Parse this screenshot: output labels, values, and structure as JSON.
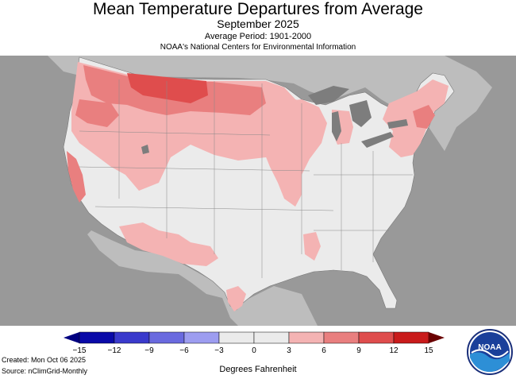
{
  "header": {
    "title": "Mean Temperature Departures from Average",
    "period": "September 2025",
    "average_period": "Average Period: 1901-2000",
    "source_org": "NOAA's National Centers for Environmental Information"
  },
  "legend": {
    "ticks": [
      "−15",
      "−12",
      "−9",
      "−6",
      "−3",
      "0",
      "3",
      "6",
      "9",
      "12",
      "15"
    ],
    "units_label": "Degrees Fahrenheit",
    "colors": [
      "#0a0aa8",
      "#3a3acc",
      "#6a6adf",
      "#9d9df0",
      "#ebebeb",
      "#ebebeb",
      "#f4b3b3",
      "#e97f7f",
      "#df4d4d",
      "#c91b1b"
    ]
  },
  "footer": {
    "created": "Created: Mon Oct 06 2025",
    "source": "Source: nClimGrid-Monthly"
  },
  "logo": {
    "text": "NOAA"
  },
  "palette": {
    "background": "#999999",
    "land": "#bdbdbd",
    "us_neutral": "#ebebeb",
    "warm_light": "#f4b3b3",
    "warm_mid": "#e97f7f",
    "warm_strong": "#df4d4d",
    "lakes": "#7d7d7d"
  }
}
